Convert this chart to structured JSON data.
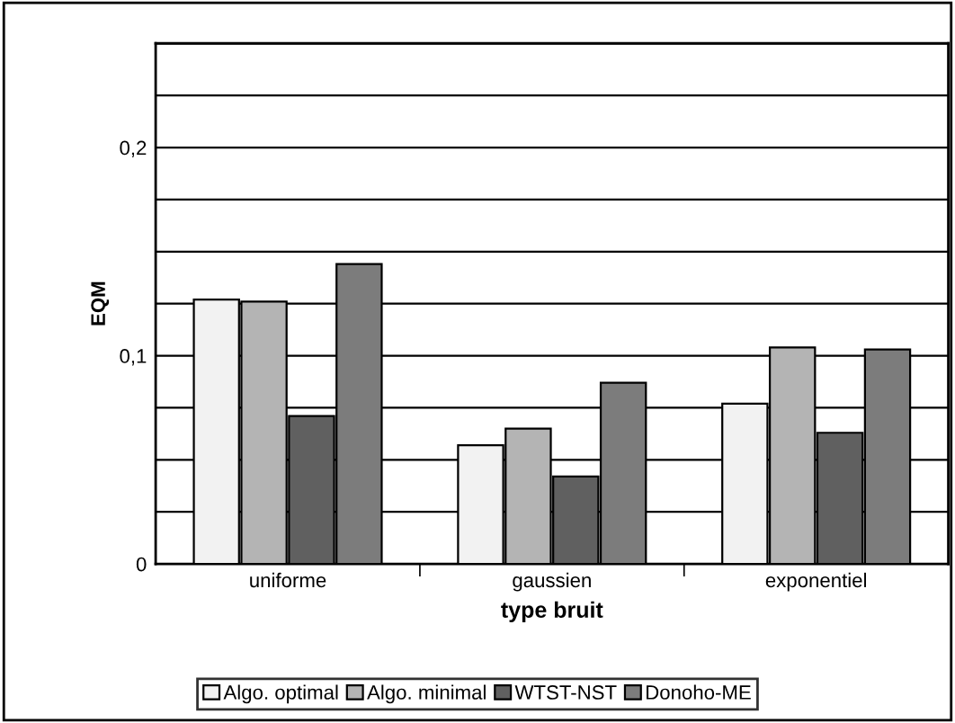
{
  "chart_data": {
    "type": "bar",
    "xlabel": "type bruit",
    "ylabel": "EQM",
    "categories": [
      "uniforme",
      "gaussien",
      "exponentiel"
    ],
    "series": [
      {
        "name": "Algo. optimal",
        "color": "#f2f2f2",
        "values": [
          0.127,
          0.057,
          0.077
        ]
      },
      {
        "name": "Algo. minimal",
        "color": "#b4b4b4",
        "values": [
          0.126,
          0.065,
          0.104
        ]
      },
      {
        "name": "WTST-NST",
        "color": "#606060",
        "values": [
          0.071,
          0.042,
          0.063
        ]
      },
      {
        "name": "Donoho-ME",
        "color": "#7c7c7c",
        "values": [
          0.144,
          0.087,
          0.103
        ]
      }
    ],
    "ylim": [
      0,
      0.25
    ],
    "yticks": [
      {
        "value": 0,
        "label": "0"
      },
      {
        "value": 0.025,
        "label": null
      },
      {
        "value": 0.05,
        "label": null
      },
      {
        "value": 0.075,
        "label": null
      },
      {
        "value": 0.1,
        "label": "0,1"
      },
      {
        "value": 0.125,
        "label": null
      },
      {
        "value": 0.15,
        "label": null
      },
      {
        "value": 0.175,
        "label": null
      },
      {
        "value": 0.2,
        "label": "0,2"
      },
      {
        "value": 0.225,
        "label": null
      },
      {
        "value": 0.25,
        "label": null
      }
    ],
    "grid": "y",
    "legend": "bottom"
  }
}
